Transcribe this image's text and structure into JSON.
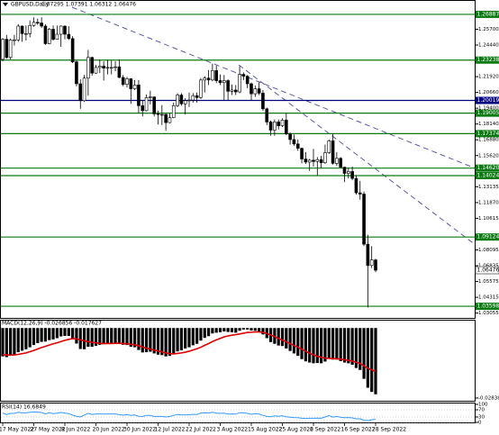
{
  "chart_data": [
    {
      "type": "candlestick",
      "title": "GBPUSD,Daily",
      "subtitle": "1.07295 1.07391 1.06312 1.06476",
      "categories": [
        "17 May 2022",
        null,
        null,
        null,
        null,
        null,
        null,
        null,
        "27 May 2022",
        null,
        null,
        null,
        null,
        null,
        null,
        null,
        "8 Jun 2022",
        null,
        null,
        null,
        null,
        null,
        null,
        null,
        "20 Jun 2022",
        null,
        null,
        null,
        null,
        null,
        null,
        null,
        "30 Jun 2022",
        null,
        null,
        null,
        null,
        null,
        null,
        null,
        "12 Jul 2022",
        null,
        null,
        null,
        null,
        null,
        null,
        null,
        "22 Jul 2022",
        null,
        null,
        null,
        null,
        null,
        null,
        null,
        "3 Aug 2022",
        null,
        null,
        null,
        null,
        null,
        null,
        null,
        "15 Aug 2022",
        null,
        null,
        null,
        null,
        null,
        null,
        null,
        "25 Aug 2022",
        null,
        null,
        null,
        null,
        null,
        null,
        null,
        "6 Sep 2022",
        null,
        null,
        null,
        null,
        null,
        null,
        null,
        "16 Sep 2022",
        null,
        null,
        null,
        null,
        null,
        null,
        null,
        "28 Sep 2022"
      ],
      "open": [
        1.233,
        1.249,
        1.2345,
        1.2485,
        1.2485,
        1.2595,
        1.2535,
        1.2535,
        1.26,
        1.2625,
        1.262,
        1.2595,
        1.2455,
        1.257,
        1.249,
        1.253,
        1.2595,
        1.253,
        1.2495,
        1.231,
        1.2135,
        1.2,
        1.218,
        1.2345,
        1.222,
        1.2265,
        1.2275,
        1.226,
        1.2265,
        1.2265,
        1.227,
        1.2185,
        1.213,
        1.2175,
        1.2095,
        1.2125,
        1.196,
        1.192,
        1.2025,
        1.203,
        1.1895,
        1.189,
        1.189,
        1.1825,
        1.1865,
        1.196,
        1.2045,
        1.1975,
        1.2,
        1.2005,
        1.204,
        1.2025,
        1.2165,
        1.218,
        1.2165,
        1.224,
        1.216,
        1.2145,
        1.216,
        1.2075,
        1.2085,
        1.207,
        1.221,
        1.2195,
        1.2135,
        1.2055,
        1.2095,
        1.206,
        1.1935,
        1.183,
        1.1765,
        1.183,
        1.18,
        1.1845,
        1.1735,
        1.169,
        1.1655,
        1.162,
        1.1535,
        1.151,
        1.1525,
        1.1515,
        1.153,
        1.1505,
        1.1585,
        1.168,
        1.15,
        1.154,
        1.147,
        1.142,
        1.1435,
        1.138,
        1.1265,
        1.1255,
        1.0855,
        1.0685,
        1.07295
      ],
      "high": [
        1.25,
        1.2525,
        1.2495,
        1.2525,
        1.261,
        1.26,
        1.26,
        1.264,
        1.2665,
        1.2655,
        1.2665,
        1.261,
        1.258,
        1.26,
        1.26,
        1.26,
        1.26,
        1.2595,
        1.2515,
        1.232,
        1.217,
        1.2205,
        1.2405,
        1.235,
        1.2285,
        1.2325,
        1.2315,
        1.2325,
        1.232,
        1.2315,
        1.233,
        1.2205,
        1.219,
        1.218,
        1.2165,
        1.2165,
        1.2005,
        1.205,
        1.208,
        1.2035,
        1.192,
        1.1965,
        1.19,
        1.19,
        1.1985,
        1.206,
        1.206,
        1.202,
        1.2065,
        1.206,
        1.2065,
        1.218,
        1.2195,
        1.2245,
        1.2295,
        1.228,
        1.221,
        1.2205,
        1.217,
        1.213,
        1.2125,
        1.2275,
        1.2225,
        1.2205,
        1.2145,
        1.212,
        1.2145,
        1.2085,
        1.1945,
        1.184,
        1.185,
        1.185,
        1.186,
        1.19,
        1.1745,
        1.173,
        1.169,
        1.1625,
        1.159,
        1.1535,
        1.1615,
        1.155,
        1.156,
        1.165,
        1.169,
        1.1738,
        1.159,
        1.155,
        1.147,
        1.1465,
        1.1475,
        1.1405,
        1.136,
        1.1275,
        1.093,
        1.084,
        1.07391
      ],
      "low": [
        1.2315,
        1.2335,
        1.233,
        1.244,
        1.247,
        1.247,
        1.248,
        1.2505,
        1.259,
        1.2605,
        1.258,
        1.2445,
        1.245,
        1.248,
        1.249,
        1.243,
        1.249,
        1.2485,
        1.23,
        1.2115,
        1.1935,
        1.199,
        1.204,
        1.22,
        1.2215,
        1.222,
        1.216,
        1.221,
        1.221,
        1.2235,
        1.218,
        1.2115,
        1.2105,
        1.1975,
        1.2085,
        1.19,
        1.1875,
        1.1915,
        1.197,
        1.1875,
        1.181,
        1.1805,
        1.176,
        1.182,
        1.186,
        1.195,
        1.196,
        1.189,
        1.195,
        1.1985,
        1.1985,
        1.2015,
        1.2065,
        1.2125,
        1.2155,
        1.214,
        1.2125,
        1.2005,
        1.2005,
        1.2045,
        1.2045,
        1.206,
        1.2165,
        1.21,
        1.2,
        1.203,
        1.2045,
        1.192,
        1.1805,
        1.172,
        1.172,
        1.177,
        1.179,
        1.1725,
        1.165,
        1.164,
        1.16,
        1.15,
        1.1495,
        1.144,
        1.1475,
        1.1405,
        1.146,
        1.1495,
        1.1575,
        1.149,
        1.148,
        1.1465,
        1.135,
        1.138,
        1.1365,
        1.125,
        1.121,
        1.084,
        1.035,
        1.0665,
        1.06312
      ],
      "close": [
        1.249,
        1.2345,
        1.2485,
        1.2485,
        1.2595,
        1.2535,
        1.2535,
        1.26,
        1.2625,
        1.262,
        1.2595,
        1.2455,
        1.257,
        1.249,
        1.253,
        1.2595,
        1.253,
        1.2495,
        1.231,
        1.2135,
        1.2,
        1.218,
        1.2345,
        1.222,
        1.2265,
        1.2275,
        1.226,
        1.2265,
        1.2265,
        1.227,
        1.2185,
        1.213,
        1.2175,
        1.2095,
        1.2125,
        1.196,
        1.192,
        1.2025,
        1.203,
        1.1895,
        1.189,
        1.189,
        1.1825,
        1.1865,
        1.196,
        1.2045,
        1.1975,
        1.2,
        1.2005,
        1.204,
        1.2025,
        1.2165,
        1.218,
        1.2165,
        1.224,
        1.216,
        1.2145,
        1.216,
        1.2075,
        1.2085,
        1.207,
        1.221,
        1.2195,
        1.2135,
        1.2055,
        1.2095,
        1.206,
        1.1935,
        1.183,
        1.1765,
        1.183,
        1.18,
        1.1845,
        1.1735,
        1.169,
        1.1655,
        1.162,
        1.1535,
        1.151,
        1.1525,
        1.1515,
        1.153,
        1.1505,
        1.1585,
        1.168,
        1.15,
        1.154,
        1.147,
        1.142,
        1.1435,
        1.138,
        1.1265,
        1.1255,
        1.0855,
        1.0685,
        1.073,
        1.06476
      ],
      "up_color": "#ffffff",
      "down_color": "#000000",
      "ylim": [
        1.0267,
        1.2796
      ],
      "yticks": [
        {
          "value": 1.257,
          "label": "1.25700"
        },
        {
          "value": 1.2444,
          "label": "1.24440"
        },
        {
          "value": 1.2192,
          "label": "1.21920"
        },
        {
          "value": 1.2066,
          "label": "1.20660"
        },
        {
          "value": 1.194,
          "label": "1.19400"
        },
        {
          "value": 1.1814,
          "label": "1.18140"
        },
        {
          "value": 1.1688,
          "label": "1.16880"
        },
        {
          "value": 1.1562,
          "label": "1.15620"
        },
        {
          "value": 1.13135,
          "label": "1.13135"
        },
        {
          "value": 1.1187,
          "label": "1.11870"
        },
        {
          "value": 1.10615,
          "label": "1.10615"
        },
        {
          "value": 1.08095,
          "label": "1.08095"
        },
        {
          "value": 1.06835,
          "label": "1.06835"
        },
        {
          "value": 1.05575,
          "label": "1.05575"
        },
        {
          "value": 1.04315,
          "label": "1.04315"
        },
        {
          "value": 1.03055,
          "label": "1.03055"
        }
      ],
      "levels": [
        {
          "value": 1.26887,
          "label": "1.26887",
          "color": "#0b7a12"
        },
        {
          "value": 1.23238,
          "label": "1.23238",
          "color": "#0b7a12"
        },
        {
          "value": 1.20019,
          "label": "1.20019",
          "color": "#00007f"
        },
        {
          "value": 1.19005,
          "label": "1.19005",
          "color": "#0b7a12"
        },
        {
          "value": 1.17374,
          "label": "1.17374",
          "color": "#0b7a12"
        },
        {
          "value": 1.1462,
          "label": "1.14620",
          "color": "#0b7a12"
        },
        {
          "value": 1.14024,
          "label": "1.14024",
          "color": "#0b7a12"
        },
        {
          "value": 1.09124,
          "label": "1.09124",
          "color": "#0b7a12"
        },
        {
          "value": 1.03598,
          "label": "1.03598",
          "color": "#0b7a12"
        }
      ]
    },
    {
      "type": "macd",
      "title": "MACD(12,26,9) -0.026856 -0.017627",
      "series": [
        {
          "color": "#000000",
          "values": [
            -0.0115,
            -0.0118,
            -0.0112,
            -0.0108,
            -0.0098,
            -0.0092,
            -0.0086,
            -0.0078,
            -0.0069,
            -0.0061,
            -0.0056,
            -0.0055,
            -0.0049,
            -0.0046,
            -0.0041,
            -0.0034,
            -0.0032,
            -0.0032,
            -0.0044,
            -0.0063,
            -0.0085,
            -0.0086,
            -0.0076,
            -0.0076,
            -0.0072,
            -0.0068,
            -0.0066,
            -0.0064,
            -0.0062,
            -0.006,
            -0.0063,
            -0.0068,
            -0.0069,
            -0.0076,
            -0.0078,
            -0.0089,
            -0.0099,
            -0.0098,
            -0.0096,
            -0.0103,
            -0.0108,
            -0.011,
            -0.0115,
            -0.0113,
            -0.0106,
            -0.0095,
            -0.009,
            -0.0083,
            -0.0078,
            -0.007,
            -0.0064,
            -0.0051,
            -0.004,
            -0.0033,
            -0.0022,
            -0.0019,
            -0.0017,
            -0.0014,
            -0.0016,
            -0.0017,
            -0.0019,
            -0.0011,
            -0.0006,
            -0.0006,
            -0.001,
            -0.0011,
            -0.0014,
            -0.0026,
            -0.0041,
            -0.0057,
            -0.0064,
            -0.0071,
            -0.0073,
            -0.0083,
            -0.0093,
            -0.0103,
            -0.0113,
            -0.0126,
            -0.0135,
            -0.014,
            -0.0143,
            -0.0142,
            -0.0143,
            -0.0136,
            -0.0124,
            -0.0128,
            -0.0128,
            -0.0134,
            -0.014,
            -0.0143,
            -0.0149,
            -0.0162,
            -0.017,
            -0.0206,
            -0.0242,
            -0.0259,
            -0.026856
          ]
        },
        {
          "color": "#e00000",
          "values": [
            -0.0108,
            -0.0109,
            -0.011,
            -0.0109,
            -0.0107,
            -0.0104,
            -0.0101,
            -0.0096,
            -0.0091,
            -0.0085,
            -0.0079,
            -0.0074,
            -0.0069,
            -0.0064,
            -0.006,
            -0.0055,
            -0.005,
            -0.0046,
            -0.0043,
            -0.0044,
            -0.0048,
            -0.0052,
            -0.0055,
            -0.0058,
            -0.006,
            -0.0062,
            -0.0063,
            -0.0063,
            -0.0063,
            -0.0062,
            -0.0062,
            -0.0063,
            -0.0064,
            -0.0066,
            -0.0068,
            -0.0072,
            -0.0077,
            -0.0082,
            -0.0085,
            -0.0089,
            -0.0093,
            -0.0097,
            -0.0101,
            -0.0104,
            -0.0105,
            -0.0103,
            -0.0101,
            -0.0098,
            -0.0094,
            -0.0089,
            -0.0084,
            -0.0078,
            -0.007,
            -0.0063,
            -0.0055,
            -0.0048,
            -0.0042,
            -0.0036,
            -0.0032,
            -0.0029,
            -0.0027,
            -0.0024,
            -0.0021,
            -0.0018,
            -0.0017,
            -0.0016,
            -0.0016,
            -0.0018,
            -0.0022,
            -0.0028,
            -0.0035,
            -0.0042,
            -0.0049,
            -0.0056,
            -0.0063,
            -0.0071,
            -0.0078,
            -0.0086,
            -0.0094,
            -0.0102,
            -0.0109,
            -0.0114,
            -0.0119,
            -0.0122,
            -0.0123,
            -0.0124,
            -0.0125,
            -0.0126,
            -0.0129,
            -0.0131,
            -0.0134,
            -0.0139,
            -0.0144,
            -0.0153,
            -0.0163,
            -0.017,
            -0.017627
          ]
        }
      ],
      "ylim": [
        -0.0295,
        0.003
      ],
      "yticks": [
        -0.02838
      ]
    },
    {
      "type": "rsi",
      "title": "RSI(14) 16.6849",
      "color": "#3399ff",
      "values": [
        52,
        44,
        50,
        50,
        56,
        53,
        53,
        56,
        58,
        57,
        55,
        47,
        54,
        49,
        51,
        55,
        51,
        49,
        40,
        34,
        30,
        41,
        50,
        44,
        47,
        47,
        46,
        47,
        47,
        47,
        43,
        40,
        43,
        39,
        41,
        34,
        33,
        39,
        39,
        33,
        33,
        33,
        30,
        33,
        39,
        44,
        41,
        42,
        42,
        45,
        44,
        52,
        53,
        52,
        56,
        51,
        50,
        51,
        46,
        47,
        46,
        54,
        53,
        50,
        45,
        48,
        46,
        39,
        34,
        31,
        36,
        34,
        37,
        31,
        29,
        27,
        26,
        23,
        22,
        23,
        23,
        24,
        23,
        30,
        38,
        29,
        33,
        29,
        26,
        27,
        25,
        20,
        20,
        12,
        10,
        15,
        16.6849
      ],
      "ylim": [
        0,
        100
      ],
      "yticks": [
        100,
        70,
        30,
        0
      ]
    }
  ]
}
